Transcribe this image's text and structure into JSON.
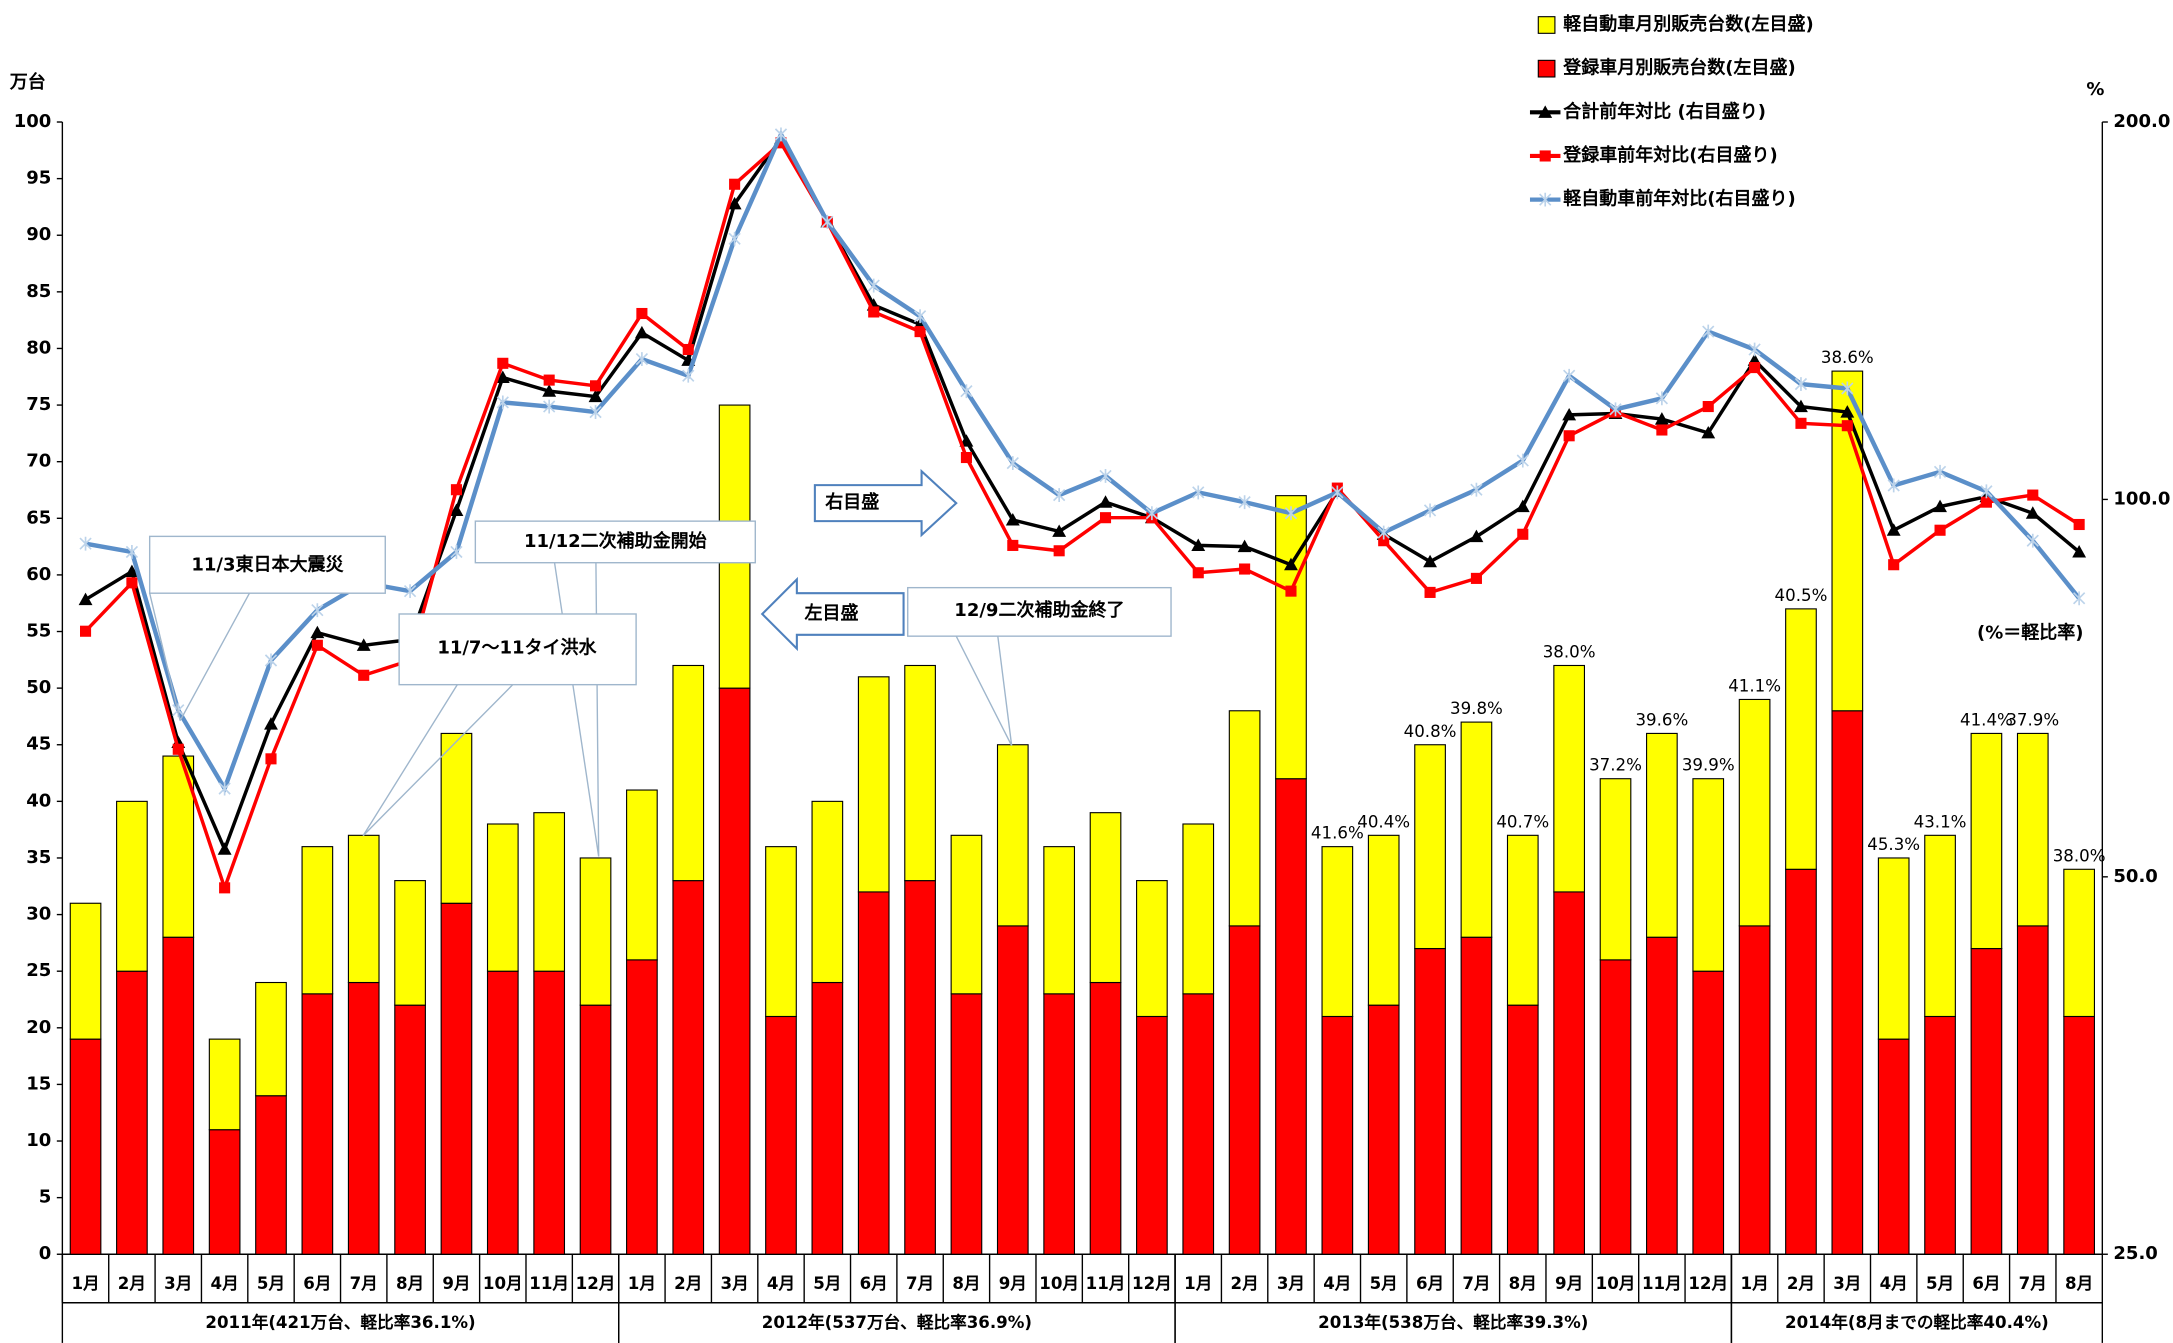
{
  "chart_data": {
    "type": "bar",
    "y_unit": "万台",
    "y2_unit": "%",
    "note": "(%＝軽比率)",
    "groups": [
      {
        "label": "2011年(421万台、軽比率36.1%)",
        "categories": [
          "1月",
          "2月",
          "3月",
          "4月",
          "5月",
          "6月",
          "7月",
          "8月",
          "9月",
          "10月",
          "11月",
          "12月"
        ]
      },
      {
        "label": "2012年(537万台、軽比率36.9%)",
        "categories": [
          "1月",
          "2月",
          "3月",
          "4月",
          "5月",
          "6月",
          "7月",
          "8月",
          "9月",
          "10月",
          "11月",
          "12月"
        ]
      },
      {
        "label": "2013年(538万台、軽比率39.3%)",
        "categories": [
          "1月",
          "2月",
          "3月",
          "4月",
          "5月",
          "6月",
          "7月",
          "8月",
          "9月",
          "10月",
          "11月",
          "12月"
        ]
      },
      {
        "label": "2014年(8月までの軽比率40.4%)",
        "categories": [
          "1月",
          "2月",
          "3月",
          "4月",
          "5月",
          "6月",
          "7月",
          "8月"
        ]
      }
    ],
    "series": [
      {
        "name": "軽自動車月別販売台数(左目盛)",
        "type": "bar",
        "color": "#ffff00",
        "values": [
          12,
          15,
          16,
          8,
          10,
          13,
          13,
          11,
          15,
          13,
          14,
          13,
          15,
          19,
          25,
          15,
          16,
          19,
          19,
          14,
          16,
          13,
          15,
          12,
          15,
          19,
          25,
          15,
          15,
          18,
          19,
          15,
          20,
          16,
          18,
          17,
          20,
          23,
          30,
          16,
          16,
          19,
          17,
          13
        ]
      },
      {
        "name": "登録車月別販売台数(左目盛)",
        "type": "bar",
        "color": "#ff0000",
        "values": [
          19,
          25,
          28,
          11,
          14,
          23,
          24,
          22,
          31,
          25,
          25,
          22,
          26,
          33,
          50,
          21,
          24,
          32,
          33,
          23,
          29,
          23,
          24,
          21,
          23,
          29,
          42,
          21,
          22,
          27,
          28,
          22,
          32,
          26,
          28,
          25,
          29,
          34,
          48,
          19,
          21,
          27,
          29,
          21
        ]
      },
      {
        "name": "合計前年対比 (右目盛り)",
        "type": "line",
        "axis": "y2",
        "color": "#000000",
        "marker": "triangle",
        "values": [
          83.2,
          87.6,
          64.0,
          52.6,
          66.2,
          78.3,
          76.5,
          77.3,
          98.0,
          125.1,
          122.0,
          120.8,
          135.8,
          129.1,
          172.1,
          194.0,
          166.5,
          142.9,
          137.9,
          111.3,
          96.3,
          94.3,
          99.5,
          96.7,
          91.9,
          91.7,
          88.7,
          101.5,
          93.8,
          89.2,
          93.4,
          98.7,
          116.8,
          117.1,
          115.9,
          113.0,
          129.1,
          118.6,
          117.4,
          94.5,
          98.7,
          100.5,
          97.5,
          90.8
        ]
      },
      {
        "name": "登録車前年対比(右目盛り)",
        "type": "line",
        "axis": "y2",
        "color": "#ff0000",
        "marker": "square",
        "values": [
          78.5,
          85.8,
          63.2,
          49.0,
          62.1,
          76.5,
          72.4,
          74.4,
          101.8,
          128.4,
          124.5,
          123.2,
          140.7,
          131.7,
          178.4,
          192.5,
          166.5,
          141.1,
          136.1,
          108.0,
          91.9,
          91.0,
          96.7,
          96.7,
          87.4,
          88.0,
          84.5,
          102.1,
          92.7,
          84.3,
          86.5,
          93.8,
          112.4,
          117.4,
          113.6,
          118.6,
          127.4,
          115.0,
          114.5,
          88.7,
          94.5,
          99.5,
          100.8,
          95.5
        ]
      },
      {
        "name": "軽自動車前年対比(右目盛り)",
        "type": "line",
        "axis": "y2",
        "color": "#5b8fc9",
        "marker": "star",
        "values": [
          92.2,
          90.8,
          67.9,
          58.8,
          74.4,
          81.6,
          85.8,
          84.5,
          90.8,
          119.5,
          118.6,
          117.4,
          129.4,
          125.5,
          161.4,
          195.5,
          166.5,
          148.1,
          140.0,
          122.0,
          106.9,
          100.8,
          104.4,
          97.5,
          101.3,
          99.5,
          97.5,
          101.3,
          94.1,
          98.0,
          101.8,
          107.4,
          125.5,
          118.0,
          120.4,
          136.1,
          131.7,
          123.6,
          122.6,
          102.6,
          105.2,
          101.5,
          92.7,
          83.4
        ]
      }
    ],
    "ratio_labels": [
      null,
      null,
      null,
      null,
      null,
      null,
      null,
      null,
      null,
      null,
      null,
      null,
      null,
      null,
      null,
      null,
      null,
      null,
      null,
      null,
      null,
      null,
      null,
      null,
      null,
      null,
      null,
      "41.6%",
      "40.4%",
      "40.8%",
      "39.8%",
      "40.7%",
      "38.0%",
      "37.2%",
      "39.6%",
      "39.9%",
      "41.1%",
      "40.5%",
      "38.6%",
      "45.3%",
      "43.1%",
      "41.4%",
      "37.9%",
      "38.0%"
    ],
    "annotations": [
      "11/3東日本大震災",
      "11/12二次補助金開始",
      "11/7～11タイ洪水",
      "12/9二次補助金終了",
      "右目盛",
      "左目盛"
    ],
    "ylim": [
      0,
      100
    ],
    "yticks": [
      0,
      5,
      10,
      15,
      20,
      25,
      30,
      35,
      40,
      45,
      50,
      55,
      60,
      65,
      70,
      75,
      80,
      85,
      90,
      95,
      100
    ],
    "y2lim": [
      25,
      200
    ],
    "y2log": true,
    "y2ticks": [
      {
        "value": 25,
        "label": "25.0"
      },
      {
        "value": 50,
        "label": "50.0"
      },
      {
        "value": 100,
        "label": "100.0"
      },
      {
        "value": 200,
        "label": "200.0"
      }
    ],
    "grid": false,
    "legend": "top-right"
  }
}
